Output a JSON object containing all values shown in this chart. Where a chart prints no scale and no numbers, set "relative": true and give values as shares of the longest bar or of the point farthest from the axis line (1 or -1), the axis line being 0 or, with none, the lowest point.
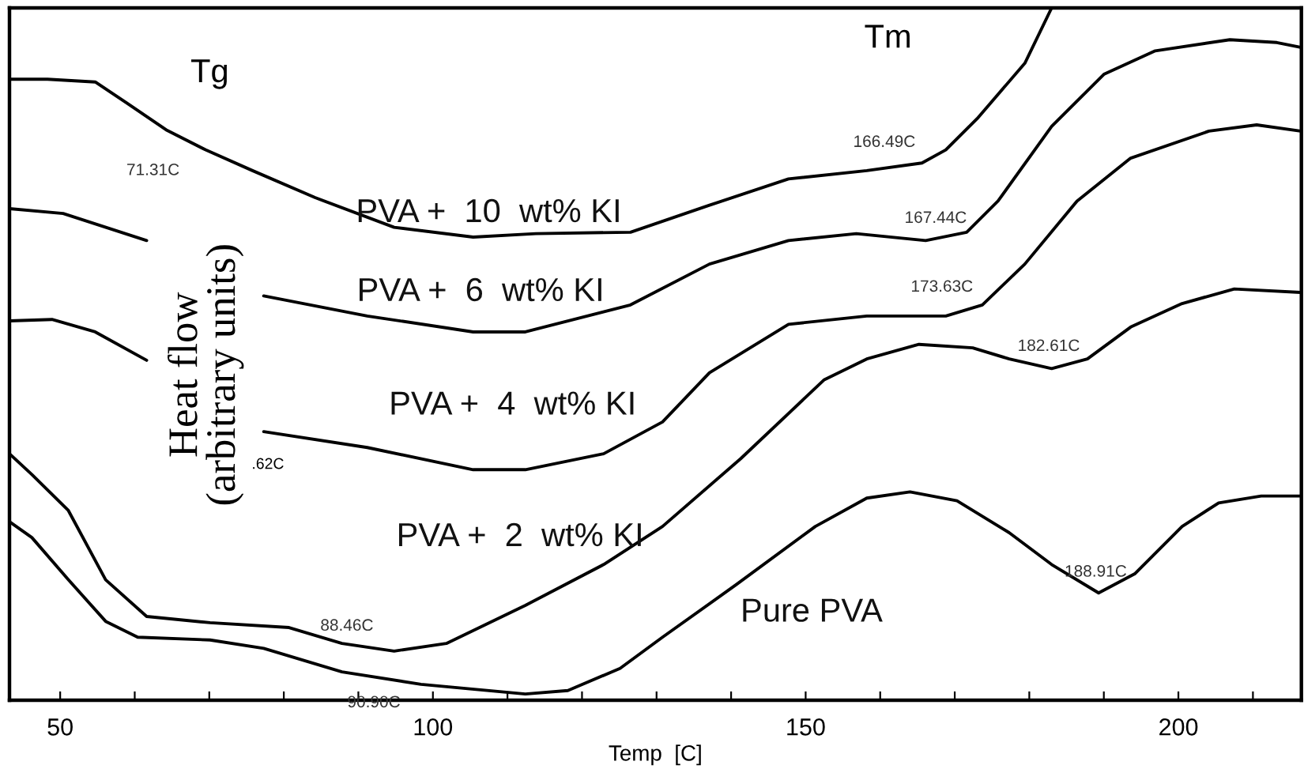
{
  "chart_data": {
    "type": "line",
    "relative": true,
    "xlabel": "Temp  [C]",
    "ylabel": "Heat flow\n(arbitrary units)",
    "xlim": [
      43.2,
      216.5
    ],
    "xticks": [
      50,
      {
        "value": 60,
        "label": null
      },
      {
        "value": 70,
        "label": null
      },
      {
        "value": 80,
        "label": null
      },
      {
        "value": 90,
        "label": null
      },
      100,
      {
        "value": 110,
        "label": null
      },
      {
        "value": 120,
        "label": null
      },
      {
        "value": 130,
        "label": null
      },
      {
        "value": 140,
        "label": null
      },
      150,
      {
        "value": 160,
        "label": null
      },
      {
        "value": 170,
        "label": null
      },
      {
        "value": 180,
        "label": null
      },
      {
        "value": 190,
        "label": null
      },
      200,
      {
        "value": 210,
        "label": null
      }
    ],
    "grid": false,
    "marker": "none",
    "line_style": "solid",
    "series": [
      {
        "name": "PVA +  10  wt% KI",
        "color": "#000000",
        "x": [
          43.2,
          48.3,
          54.7,
          58.9,
          64.2,
          69.5,
          75.8,
          84.2,
          94.8,
          105.4,
          113.8,
          126.5,
          137.1,
          147.7,
          158.2,
          165.6,
          168.8,
          173.0,
          179.4,
          183.0
        ],
        "values": [
          0.897,
          0.897,
          0.893,
          0.863,
          0.824,
          0.795,
          0.765,
          0.726,
          0.683,
          0.669,
          0.674,
          0.676,
          0.715,
          0.753,
          0.765,
          0.776,
          0.795,
          0.84,
          0.92,
          1.0
        ]
      },
      {
        "name": "PVA +  6  wt% KI",
        "color": "#000000",
        "x": [
          43.2,
          50.4,
          61.6,
          69.0,
          77.3,
          91.2,
          105.4,
          112.4,
          126.5,
          137.1,
          147.7,
          156.8,
          166.1,
          171.6,
          175.8,
          183.0,
          190.0,
          196.9,
          206.9,
          213.2,
          216.4
        ],
        "values": [
          0.71,
          0.703,
          0.664,
          null,
          0.584,
          0.555,
          0.532,
          0.532,
          0.571,
          0.63,
          0.664,
          0.674,
          0.664,
          0.676,
          0.721,
          0.829,
          0.904,
          0.938,
          0.954,
          0.95,
          0.943
        ]
      },
      {
        "name": "PVA +  4  wt% KI",
        "color": "#000000",
        "x": [
          43.2,
          48.9,
          54.7,
          61.6,
          69.0,
          77.3,
          91.2,
          105.4,
          112.4,
          122.9,
          130.8,
          137.1,
          147.7,
          158.2,
          168.8,
          173.7,
          179.4,
          186.4,
          193.6,
          204.1,
          210.5,
          216.4
        ],
        "values": [
          0.548,
          0.55,
          0.532,
          0.491,
          null,
          0.388,
          0.365,
          0.333,
          0.333,
          0.356,
          0.402,
          0.473,
          0.543,
          0.555,
          0.555,
          0.571,
          0.63,
          0.721,
          0.783,
          0.822,
          0.831,
          0.822
        ]
      },
      {
        "name": "PVA +  2  wt% KI",
        "color": "#000000",
        "x": [
          43.2,
          46.2,
          51.1,
          56.1,
          61.6,
          70.1,
          80.7,
          87.8,
          94.8,
          101.8,
          112.4,
          122.9,
          130.8,
          141.3,
          152.5,
          158.2,
          165.2,
          172.4,
          177.3,
          183.0,
          187.8,
          193.6,
          200.5,
          207.5,
          216.4
        ],
        "values": [
          0.356,
          0.326,
          0.274,
          0.174,
          0.121,
          0.112,
          0.105,
          0.082,
          0.071,
          0.082,
          0.137,
          0.196,
          0.251,
          0.349,
          0.463,
          0.493,
          0.514,
          0.509,
          0.493,
          0.479,
          0.493,
          0.539,
          0.573,
          0.594,
          0.589
        ]
      },
      {
        "name": "Pure PVA",
        "color": "#000000",
        "x": [
          43.2,
          46.2,
          51.1,
          56.1,
          60.4,
          70.1,
          77.3,
          87.8,
          98.4,
          112.4,
          118.1,
          125.1,
          130.8,
          140.7,
          151.3,
          158.2,
          164.0,
          170.3,
          177.3,
          183.0,
          189.3,
          194.2,
          200.5,
          205.4,
          211.1,
          216.4
        ],
        "values": [
          0.258,
          0.235,
          0.174,
          0.114,
          0.091,
          0.087,
          0.075,
          0.041,
          0.023,
          0.009,
          0.014,
          0.046,
          0.091,
          0.167,
          0.251,
          0.292,
          0.301,
          0.288,
          0.242,
          0.196,
          0.155,
          0.183,
          0.251,
          0.285,
          0.295,
          0.295
        ]
      }
    ],
    "annotations": [
      "Tg",
      "Tm",
      ".62C",
      {
        "text": "71.31C",
        "x": 71.31,
        "y": 0.79
      },
      {
        "text": "166.49C",
        "x": 166.49,
        "y": 0.78
      },
      {
        "text": "167.44C",
        "x": 167.44,
        "y": 0.664
      },
      {
        "text": "173.63C",
        "x": 173.63,
        "y": 0.571
      },
      {
        "text": "182.61C",
        "x": 182.61,
        "y": 0.479
      },
      {
        "text": "188.91C",
        "x": 188.91,
        "y": 0.153
      },
      {
        "text": "88.46C",
        "x": 88.46,
        "y": 0.075
      },
      {
        "text": "90.90C",
        "x": 90.9,
        "y": 0.034
      }
    ]
  }
}
